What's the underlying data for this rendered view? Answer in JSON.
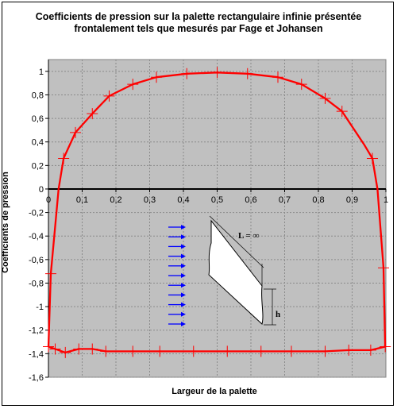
{
  "chart_data": {
    "type": "line",
    "title": [
      "Coefficients de pression sur la palette rectangulaire infinie présentée",
      "frontalement tels que mesurés par Fage et Johansen"
    ],
    "xlabel": "Largeur de la palette",
    "ylabel": "Coefficients de pression",
    "xlim": [
      0,
      1
    ],
    "ylim": [
      -1.6,
      1.1
    ],
    "x_ticks": [
      "0",
      "0,1",
      "0,2",
      "0,3",
      "0,4",
      "0,5",
      "0,6",
      "0,7",
      "0,8",
      "0,9",
      "1"
    ],
    "y_ticks": [
      "1",
      "0,8",
      "0,6",
      "0,4",
      "0,2",
      "0",
      "-0,2",
      "-0,4",
      "-0,6",
      "-0,8",
      "-1",
      "-1,2",
      "-1,4",
      "-1,6"
    ],
    "grid": true,
    "colors": {
      "plot_bg": "#c0c0c0",
      "series": "#ff0000",
      "flow_arrows": "#0000ff",
      "zero_line": "#000000"
    },
    "series": [
      {
        "points": [
          [
            0.0,
            -1.34
          ],
          [
            0.007,
            -0.72
          ],
          [
            0.03,
            0.0
          ],
          [
            0.045,
            0.26
          ],
          [
            0.08,
            0.48
          ],
          [
            0.13,
            0.64
          ],
          [
            0.18,
            0.79
          ],
          [
            0.25,
            0.89
          ],
          [
            0.32,
            0.95
          ],
          [
            0.41,
            0.98
          ],
          [
            0.5,
            0.99
          ],
          [
            0.59,
            0.98
          ],
          [
            0.68,
            0.95
          ],
          [
            0.75,
            0.89
          ],
          [
            0.82,
            0.77
          ],
          [
            0.87,
            0.66
          ],
          [
            0.935,
            0.38
          ],
          [
            0.96,
            0.26
          ],
          [
            0.975,
            0.0
          ],
          [
            0.993,
            -0.67
          ],
          [
            0.998,
            -1.34
          ],
          [
            0.955,
            -1.37
          ],
          [
            0.89,
            -1.37
          ],
          [
            0.82,
            -1.38
          ],
          [
            0.72,
            -1.38
          ],
          [
            0.63,
            -1.38
          ],
          [
            0.53,
            -1.38
          ],
          [
            0.43,
            -1.38
          ],
          [
            0.33,
            -1.38
          ],
          [
            0.25,
            -1.38
          ],
          [
            0.17,
            -1.38
          ],
          [
            0.13,
            -1.36
          ],
          [
            0.09,
            -1.36
          ],
          [
            0.05,
            -1.39
          ],
          [
            0.02,
            -1.36
          ],
          [
            0.0,
            -1.34
          ]
        ],
        "markers": [
          [
            0.0,
            -1.34
          ],
          [
            0.007,
            -0.72
          ],
          [
            0.045,
            0.26
          ],
          [
            0.08,
            0.48
          ],
          [
            0.13,
            0.64
          ],
          [
            0.18,
            0.79
          ],
          [
            0.25,
            0.89
          ],
          [
            0.32,
            0.95
          ],
          [
            0.41,
            0.98
          ],
          [
            0.5,
            0.99
          ],
          [
            0.59,
            0.98
          ],
          [
            0.68,
            0.95
          ],
          [
            0.75,
            0.89
          ],
          [
            0.82,
            0.77
          ],
          [
            0.87,
            0.66
          ],
          [
            0.96,
            0.26
          ],
          [
            0.993,
            -0.67
          ],
          [
            0.998,
            -1.34
          ],
          [
            0.955,
            -1.37
          ],
          [
            0.89,
            -1.37
          ],
          [
            0.82,
            -1.38
          ],
          [
            0.72,
            -1.38
          ],
          [
            0.63,
            -1.38
          ],
          [
            0.53,
            -1.38
          ],
          [
            0.43,
            -1.38
          ],
          [
            0.33,
            -1.38
          ],
          [
            0.25,
            -1.38
          ],
          [
            0.17,
            -1.38
          ],
          [
            0.13,
            -1.36
          ],
          [
            0.09,
            -1.36
          ],
          [
            0.05,
            -1.39
          ],
          [
            0.02,
            -1.36
          ]
        ]
      }
    ],
    "annotations": {
      "plate_length_label": "L = ∞",
      "plate_height_label": "h",
      "flow_arrow_count": 11
    }
  }
}
